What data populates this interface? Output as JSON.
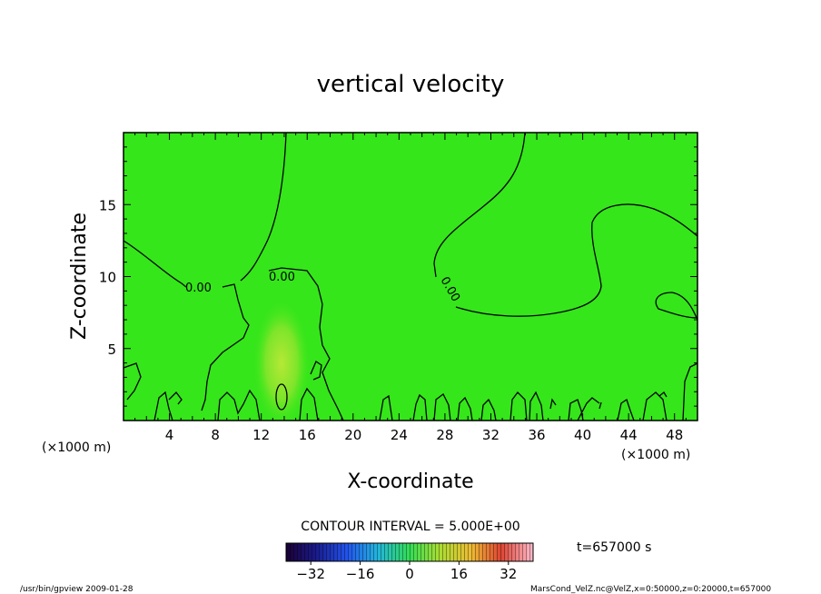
{
  "chart_data": {
    "type": "contour",
    "title": "vertical velocity",
    "xlabel": "X-coordinate",
    "ylabel": "Z-coordinate",
    "x_unit_left": "(×1000 m)",
    "x_unit_right": "(×1000 m)",
    "xlim": [
      0,
      50
    ],
    "ylim": [
      0,
      20
    ],
    "xticks": [
      4,
      8,
      12,
      16,
      20,
      24,
      28,
      32,
      36,
      40,
      44,
      48
    ],
    "yticks": [
      5,
      10,
      15
    ],
    "contour_label": "0.00",
    "contour_interval_text": "CONTOUR INTERVAL = 5.000E+00",
    "time_text": "t=657000 s",
    "colorbar": {
      "min": -40,
      "max": 40,
      "ticks": [
        -32,
        -16,
        0,
        16,
        32
      ],
      "tick_labels": [
        "−32",
        "−16",
        "0",
        "16",
        "32"
      ]
    },
    "footer_left": "/usr/bin/gpview   2009-01-28",
    "footer_right": "MarsCond_VelZ.nc@VelZ,x=0:50000,z=0:20000,t=657000",
    "colors": {
      "field": "#35e61a",
      "warm_spot": "#a4e83a",
      "contour": "#000000"
    }
  }
}
